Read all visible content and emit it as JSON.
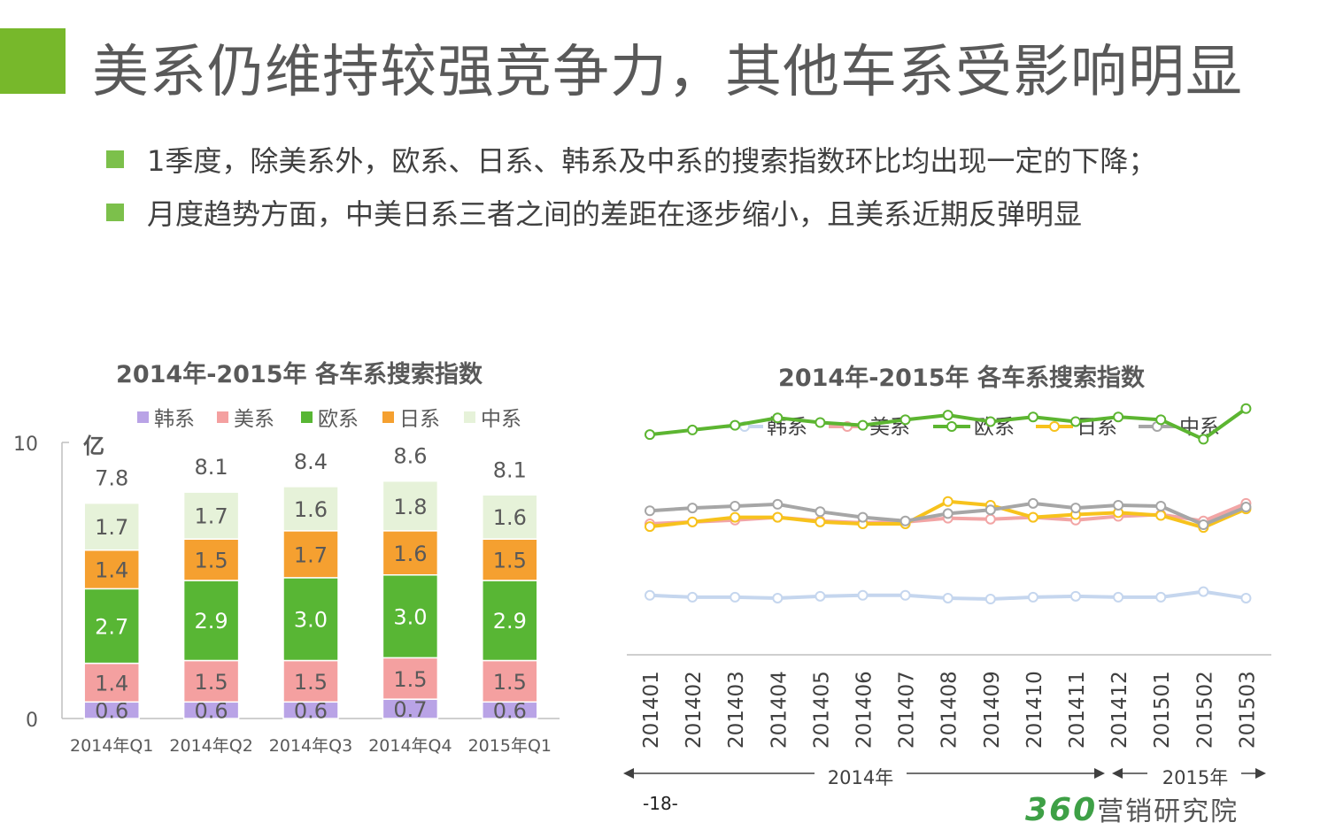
{
  "title": "美系仍维持较强竞争力，其他车系受影响明显",
  "bullets": [
    "1季度，除美系外，欧系、日系、韩系及中系的搜索指数环比均出现一定的下降；",
    "月度趋势方面，中美日系三者之间的差距在逐步缩小，且美系近期反弹明显"
  ],
  "page_number": "-18-",
  "logo": {
    "number": "360",
    "text": "营销研究院"
  },
  "chart_data": [
    {
      "type": "bar",
      "stacked": true,
      "title": "2014年-2015年  各车系搜索指数",
      "ylabel": "亿",
      "ylim": [
        0,
        10
      ],
      "yticks": [
        "0",
        "10"
      ],
      "categories": [
        "2014年Q1",
        "2014年Q2",
        "2014年Q3",
        "2014年Q4",
        "2015年Q1"
      ],
      "totals": [
        "7.8",
        "8.1",
        "8.4",
        "8.6",
        "8.1"
      ],
      "series": [
        {
          "name": "韩系",
          "color": "#b9a3e6",
          "values": [
            0.6,
            0.6,
            0.6,
            0.7,
            0.6
          ],
          "labels": [
            "0.6",
            "0.6",
            "0.6",
            "0.7",
            "0.6"
          ]
        },
        {
          "name": "美系",
          "color": "#f4a0a0",
          "values": [
            1.4,
            1.5,
            1.5,
            1.5,
            1.5
          ],
          "labels": [
            "1.4",
            "1.5",
            "1.5",
            "1.5",
            "1.5"
          ]
        },
        {
          "name": "欧系",
          "color": "#58b634",
          "values": [
            2.7,
            2.9,
            3.0,
            3.0,
            2.9
          ],
          "labels": [
            "2.7",
            "2.9",
            "3.0",
            "3.0",
            "2.9"
          ]
        },
        {
          "name": "日系",
          "color": "#f5a030",
          "values": [
            1.4,
            1.5,
            1.7,
            1.6,
            1.5
          ],
          "labels": [
            "1.4",
            "1.5",
            "1.7",
            "1.6",
            "1.5"
          ]
        },
        {
          "name": "中系",
          "color": "#e6f2d9",
          "values": [
            1.7,
            1.7,
            1.6,
            1.8,
            1.6
          ],
          "labels": [
            "1.7",
            "1.7",
            "1.6",
            "1.8",
            "1.6"
          ]
        }
      ]
    },
    {
      "type": "line",
      "title": "2014年-2015年 各车系搜索指数",
      "x": [
        "201401",
        "201402",
        "201403",
        "201404",
        "201405",
        "201406",
        "201407",
        "201408",
        "201409",
        "201410",
        "201411",
        "201412",
        "201501",
        "201502",
        "201503"
      ],
      "ylim": [
        2.0,
        4.0
      ],
      "periods": [
        "2014年",
        "2015年"
      ],
      "series": [
        {
          "name": "韩系",
          "color": "#c5d6ee",
          "values": [
            3.36,
            3.38,
            3.38,
            3.39,
            3.37,
            3.36,
            3.36,
            3.39,
            3.4,
            3.38,
            3.37,
            3.38,
            3.38,
            3.32,
            3.39
          ]
        },
        {
          "name": "美系",
          "color": "#f2a5a5",
          "values": [
            2.59,
            2.57,
            2.55,
            2.52,
            2.56,
            2.58,
            2.57,
            2.53,
            2.54,
            2.52,
            2.55,
            2.51,
            2.49,
            2.56,
            2.37
          ]
        },
        {
          "name": "欧系",
          "color": "#5cb531",
          "values": [
            1.63,
            1.58,
            1.53,
            1.45,
            1.5,
            1.53,
            1.47,
            1.42,
            1.49,
            1.44,
            1.49,
            1.44,
            1.47,
            1.68,
            1.35
          ]
        },
        {
          "name": "日系",
          "color": "#f7c21c",
          "values": [
            2.62,
            2.57,
            2.52,
            2.52,
            2.57,
            2.59,
            2.59,
            2.35,
            2.39,
            2.52,
            2.49,
            2.47,
            2.5,
            2.63,
            2.43
          ]
        },
        {
          "name": "中系",
          "color": "#a6a6a6",
          "values": [
            2.45,
            2.42,
            2.4,
            2.38,
            2.46,
            2.52,
            2.56,
            2.48,
            2.44,
            2.37,
            2.42,
            2.39,
            2.4,
            2.6,
            2.41
          ]
        }
      ]
    }
  ]
}
